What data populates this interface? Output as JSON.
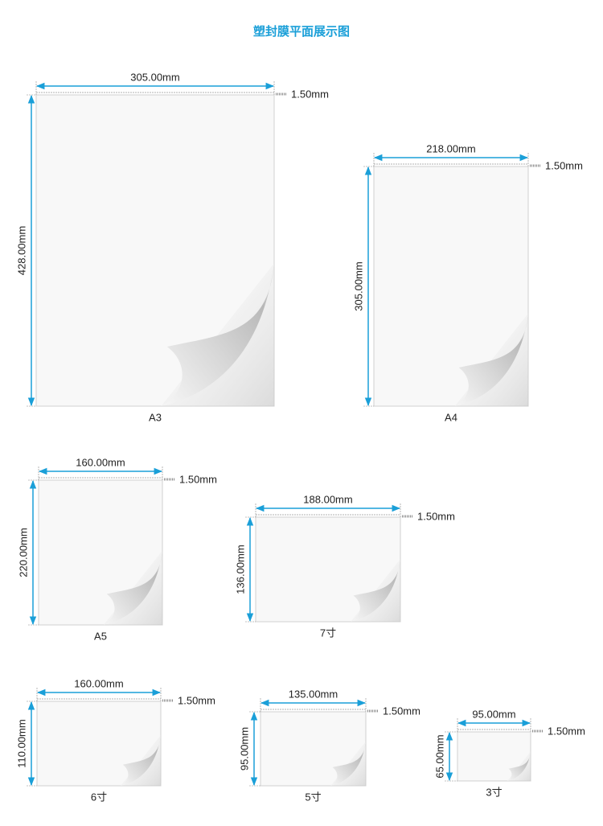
{
  "title": "塑封膜平面展示图",
  "sheets": [
    {
      "name": "A3",
      "width": "305.00mm",
      "height": "428.00mm",
      "thickness": "1.50mm"
    },
    {
      "name": "A4",
      "width": "218.00mm",
      "height": "305.00mm",
      "thickness": "1.50mm"
    },
    {
      "name": "A5",
      "width": "160.00mm",
      "height": "220.00mm",
      "thickness": "1.50mm"
    },
    {
      "name": "7寸",
      "width": "188.00mm",
      "height": "136.00mm",
      "thickness": "1.50mm"
    },
    {
      "name": "6寸",
      "width": "160.00mm",
      "height": "110.00mm",
      "thickness": "1.50mm"
    },
    {
      "name": "5寸",
      "width": "135.00mm",
      "height": "95.00mm",
      "thickness": "1.50mm"
    },
    {
      "name": "3寸",
      "width": "95.00mm",
      "height": "65.00mm",
      "thickness": "1.50mm"
    }
  ]
}
